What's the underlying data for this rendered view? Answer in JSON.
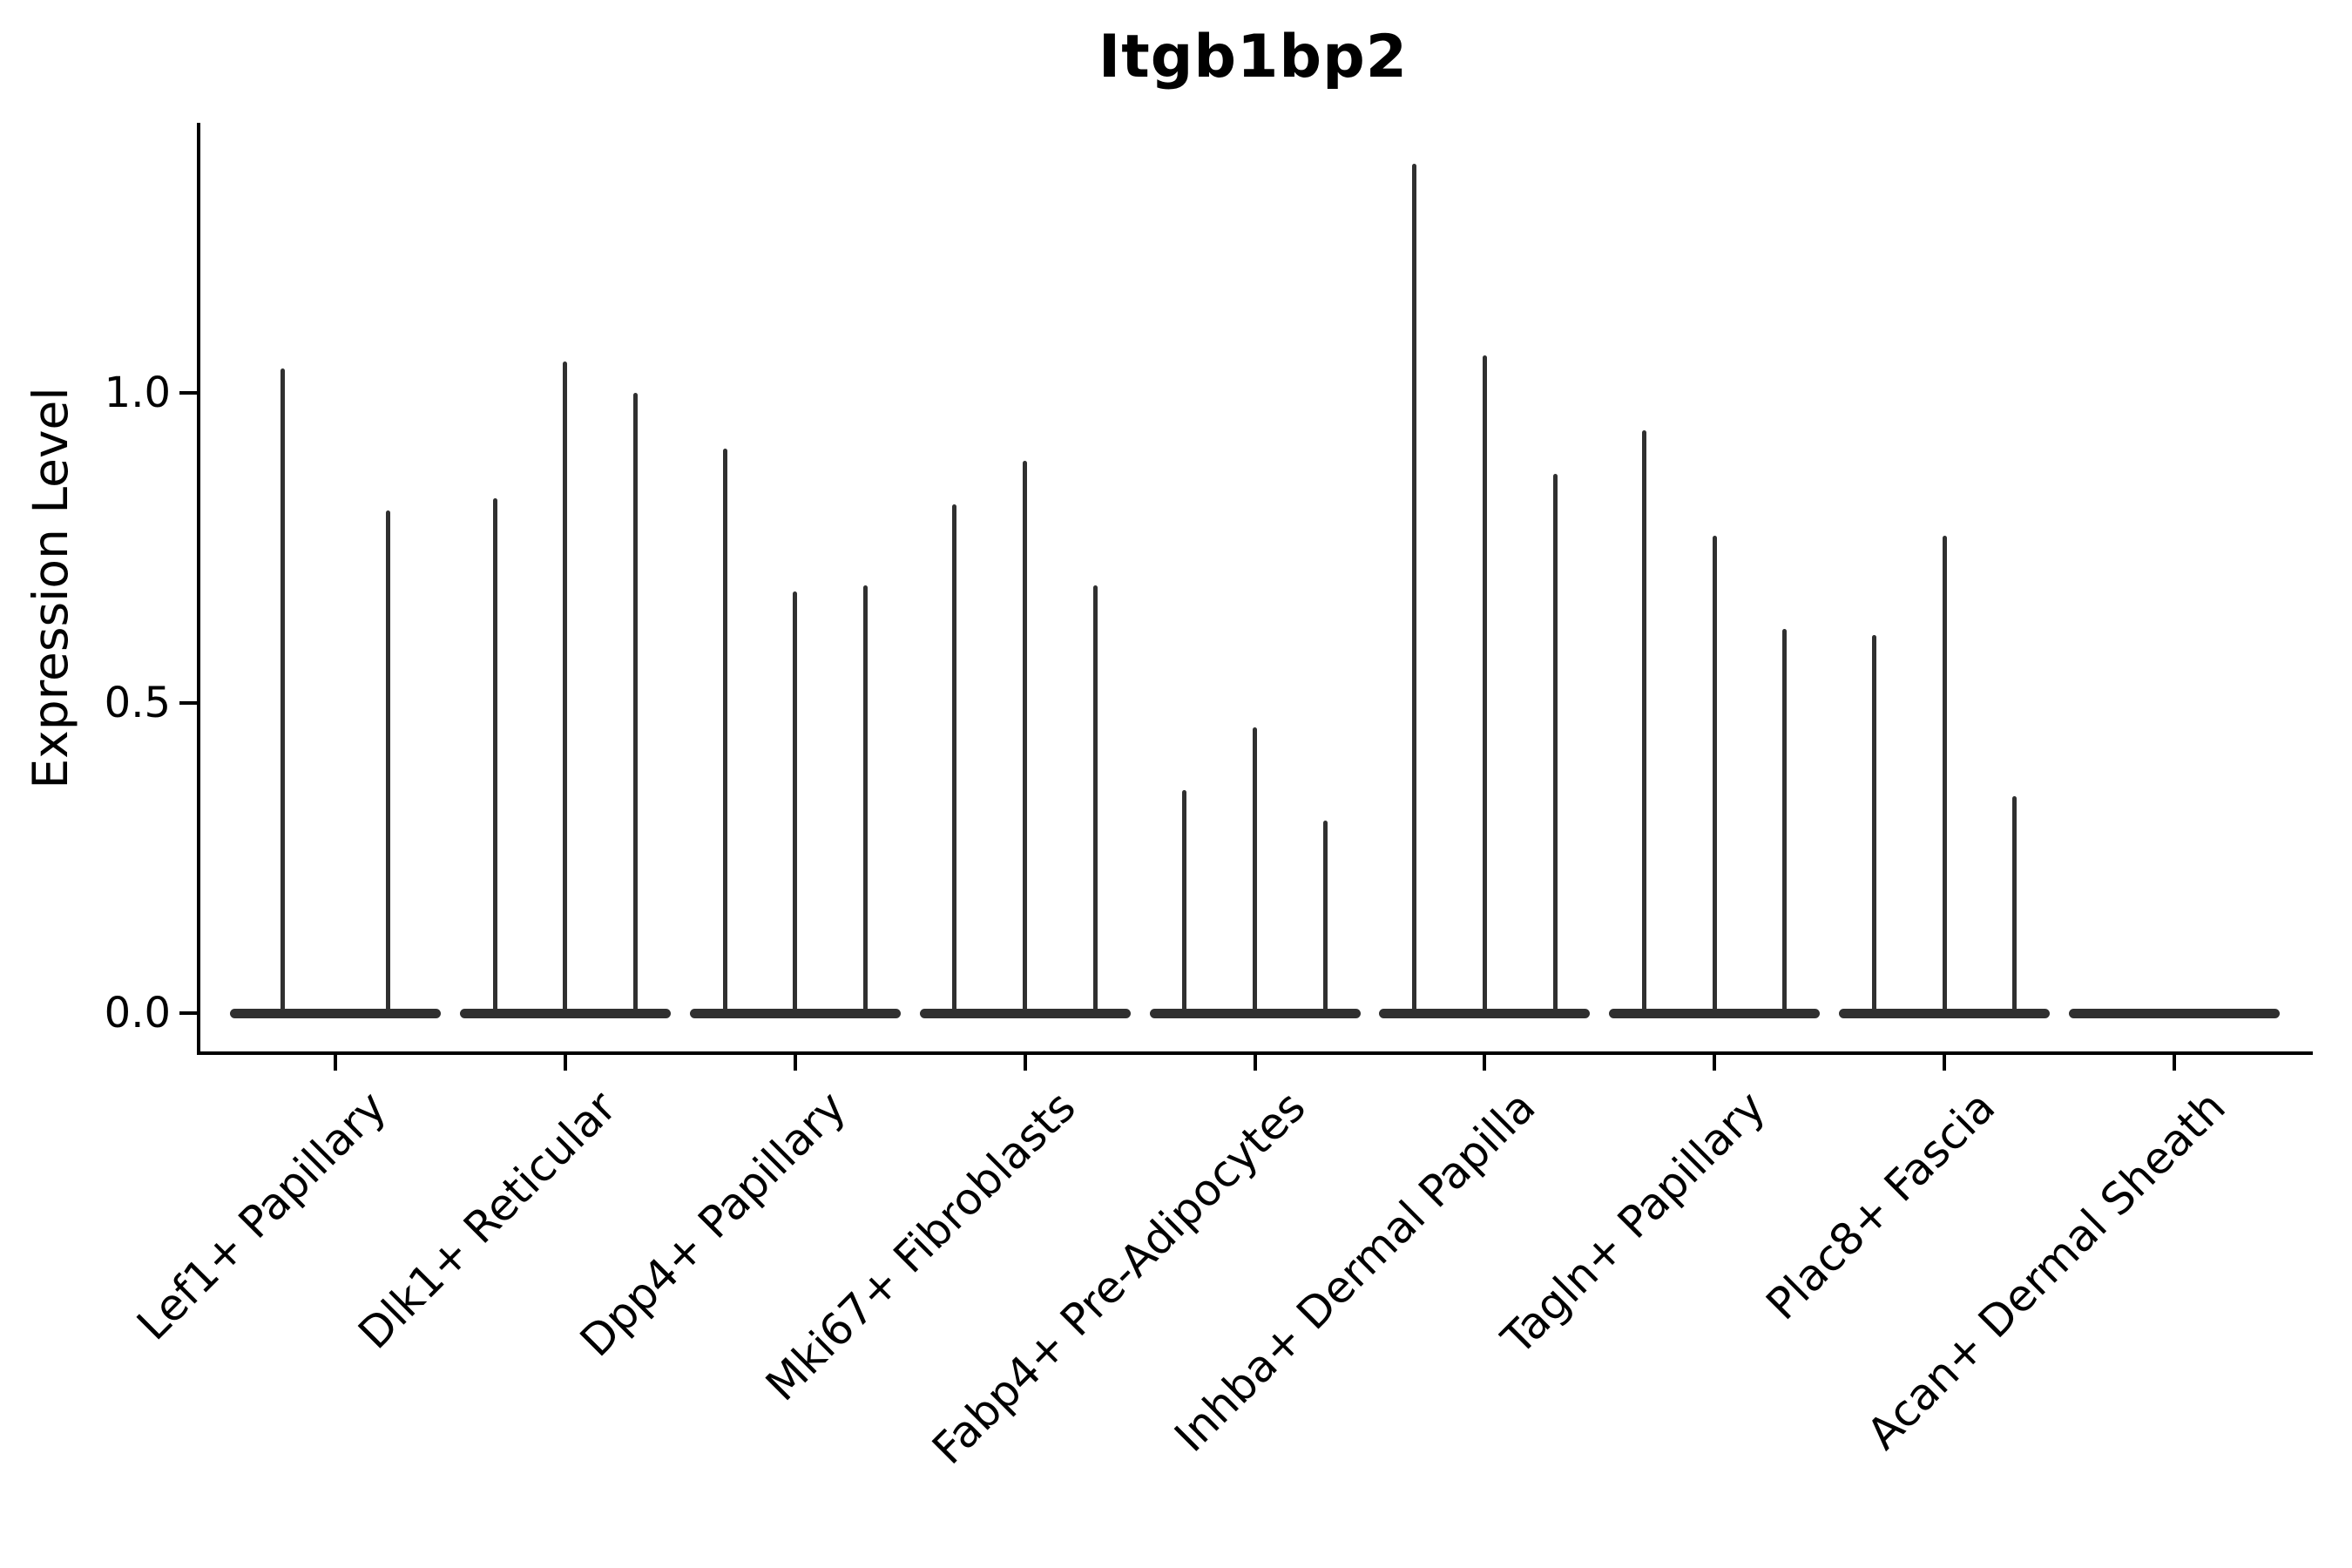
{
  "figure": {
    "background": "#ffffff"
  },
  "chart_data": {
    "type": "violin",
    "title": "Itgb1bp2",
    "ylabel": "Expression Level",
    "xlabel": "",
    "yticks": [
      "0.0",
      "0.5",
      "1.0"
    ],
    "ytick_values": [
      0.0,
      0.5,
      1.0
    ],
    "ylim": [
      -0.07,
      1.43
    ],
    "x_rotation_deg": 45,
    "grid": false,
    "legend": false,
    "colors": {
      "violin": "#303030",
      "axis": "#000000",
      "text": "#000000"
    },
    "categories": [
      {
        "label": "Lef1+ Papillary",
        "violin_max_values": [
          1.04,
          0.81
        ]
      },
      {
        "label": "Dlk1+ Reticular",
        "violin_max_values": [
          0.83,
          1.05,
          1.0
        ]
      },
      {
        "label": "Dpp4+ Papillary",
        "violin_max_values": [
          0.91,
          0.68,
          0.69
        ]
      },
      {
        "label": "Mki67+ Fibroblasts",
        "violin_max_values": [
          0.82,
          0.89,
          0.69
        ]
      },
      {
        "label": "Fabp4+ Pre-Adipocytes",
        "violin_max_values": [
          0.36,
          0.46,
          0.31
        ]
      },
      {
        "label": "Inhba+ Dermal Papilla",
        "violin_max_values": [
          1.37,
          1.06,
          0.87
        ]
      },
      {
        "label": "Tagln+ Papillary",
        "violin_max_values": [
          0.94,
          0.77,
          0.62
        ]
      },
      {
        "label": "Plac8+ Fascia",
        "violin_max_values": [
          0.61,
          0.77,
          0.35
        ]
      },
      {
        "label": "Acan+ Dermal Sheath",
        "violin_max_values": []
      }
    ]
  }
}
